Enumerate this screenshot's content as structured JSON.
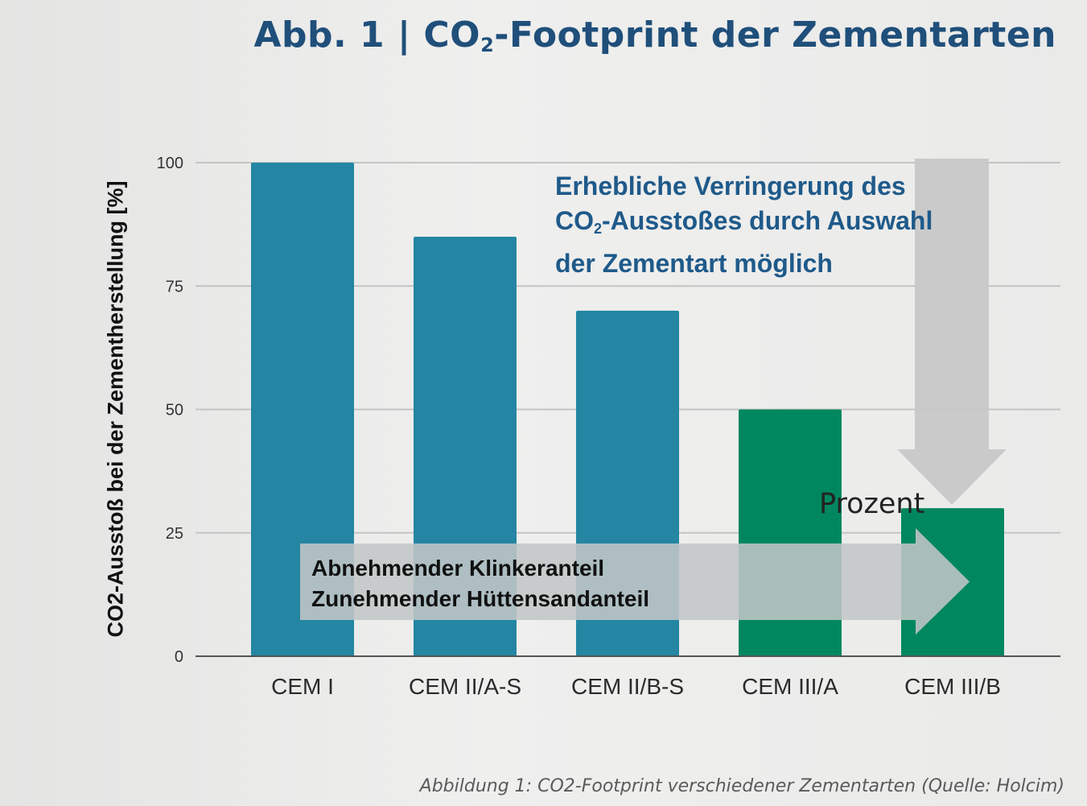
{
  "title": {
    "prefix": "Abb. 1 | CO",
    "sub": "2",
    "suffix": "-Footprint der Zementarten"
  },
  "caption": "Abbildung 1: CO2-Footprint verschiedener Zementarten (Quelle: Holcim)",
  "annotation": {
    "line1": "Erhebliche Verringerung des",
    "line2_prefix": "CO",
    "line2_sub": "2",
    "line2_suffix": "-Ausstoßes durch Auswahl",
    "line3": "der Zementart möglich"
  },
  "band": {
    "line1": "Abnehmender Klinkeranteil",
    "line2": "Zunehmender Hüttensandanteil"
  },
  "prozent_label": "Prozent",
  "colors": {
    "title": "#1f4f7a",
    "bar_blue": "#2486a2",
    "bar_green": "#00875f",
    "annotation": "#1f5a8a",
    "arrow": "#c8c8c8",
    "band": "#c2c6c6"
  },
  "chart_data": {
    "type": "bar",
    "categories": [
      "CEM I",
      "CEM II/A-S",
      "CEM II/B-S",
      "CEM III/A",
      "CEM III/B"
    ],
    "values": [
      100,
      85,
      70,
      50,
      30
    ],
    "bar_colors": [
      "#2486a2",
      "#2486a2",
      "#2486a2",
      "#00875f",
      "#00875f"
    ],
    "ylabel": "CO2-Ausstoß bei der Zementherstellung [%]",
    "ylim": [
      0,
      100
    ],
    "yticks": [
      0,
      25,
      50,
      75,
      100
    ],
    "ytick_labels": [
      "0",
      "25",
      "50",
      "75",
      "100"
    ],
    "grid": true
  }
}
